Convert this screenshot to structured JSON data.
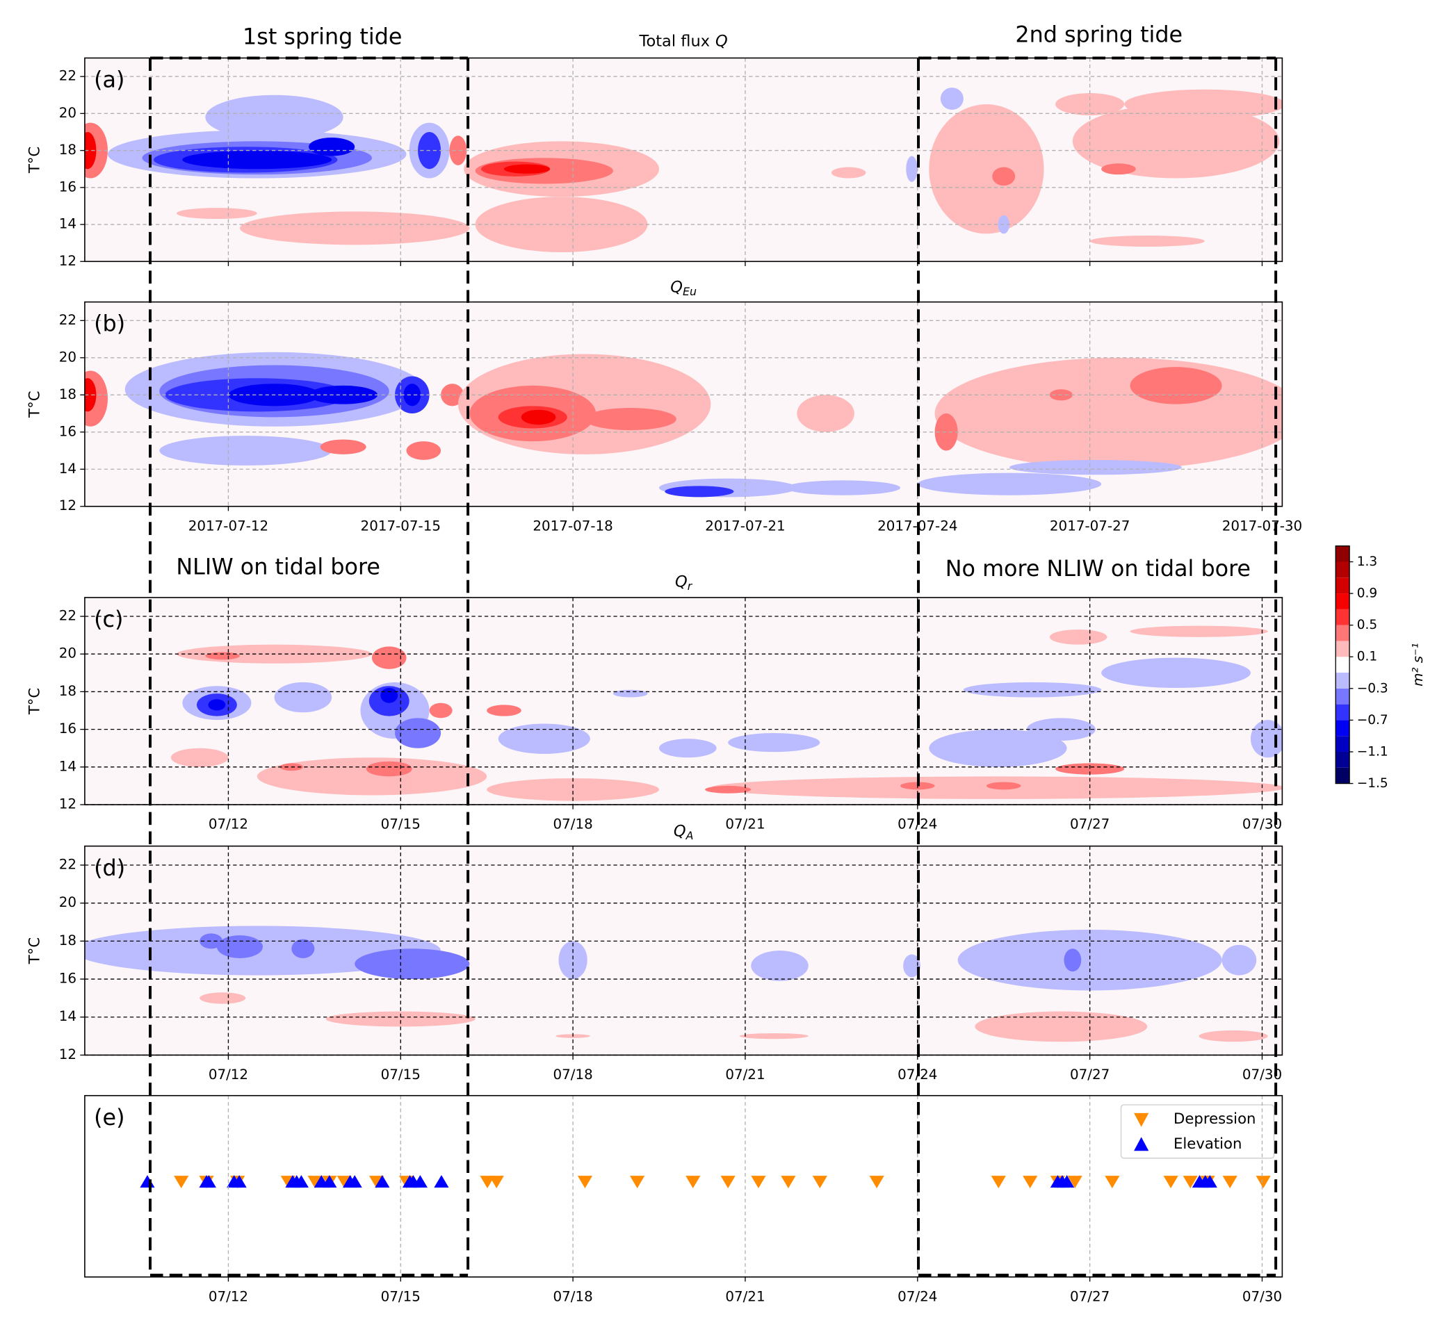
{
  "annotations": {
    "first_spring": "1st spring tide",
    "second_spring": "2nd spring tide",
    "nliw": "NLIW on tidal bore",
    "no_nliw": "No more NLIW on tidal bore"
  },
  "colorbar": {
    "label": "m² s⁻¹",
    "clim": [
      -1.5,
      1.5
    ],
    "levels": [
      -1.5,
      -1.3,
      -1.1,
      -0.9,
      -0.7,
      -0.5,
      -0.3,
      -0.1,
      0.1,
      0.3,
      0.5,
      0.7,
      0.9,
      1.1,
      1.3,
      1.5
    ],
    "ticks": [
      {
        "value": -1.5,
        "label": "−1.5"
      },
      {
        "value": -1.1,
        "label": "−1.1"
      },
      {
        "value": -0.7,
        "label": "−0.7"
      },
      {
        "value": -0.3,
        "label": "−0.3"
      },
      0.1,
      0.5,
      0.9,
      1.3
    ]
  },
  "chart_data": [
    {
      "type": "contour",
      "panel_label": "(a)",
      "title": "Total flux",
      "title_var": "Q",
      "ylabel": "T°C",
      "xlim": [
        9.5,
        30.35
      ],
      "ylim": [
        12,
        23
      ],
      "xticks": [
        12,
        15,
        18,
        21,
        24,
        27,
        30
      ],
      "yticks": [
        12,
        14,
        16,
        18,
        20,
        22
      ],
      "grid_color": "#b0b0b0",
      "blobs": [
        [
          9.6,
          18,
          0.3,
          1.5,
          0.4
        ],
        [
          9.55,
          18,
          0.15,
          1,
          0.8
        ],
        [
          12.5,
          17.8,
          2.6,
          1.3,
          -0.2
        ],
        [
          12.8,
          19.8,
          1.2,
          1.2,
          -0.2
        ],
        [
          12.5,
          17.6,
          2.0,
          0.9,
          -0.4
        ],
        [
          12.3,
          17.5,
          1.6,
          0.7,
          -0.6
        ],
        [
          12.5,
          17.5,
          1.3,
          0.5,
          -0.8
        ],
        [
          13.8,
          18.2,
          0.4,
          0.5,
          -0.8
        ],
        [
          15.5,
          18,
          0.35,
          1.5,
          -0.2
        ],
        [
          15.5,
          18,
          0.2,
          1,
          -0.6
        ],
        [
          16,
          18,
          0.15,
          0.8,
          0.4
        ],
        [
          14.2,
          13.8,
          2.0,
          0.9,
          0.2
        ],
        [
          11.8,
          14.6,
          0.7,
          0.3,
          0.2
        ],
        [
          17.8,
          17,
          1.7,
          1.5,
          0.2
        ],
        [
          17.8,
          14,
          1.5,
          1.5,
          0.2
        ],
        [
          17.5,
          16.9,
          1.2,
          0.7,
          0.4
        ],
        [
          17,
          17,
          0.6,
          0.4,
          0.6
        ],
        [
          17.2,
          17,
          0.4,
          0.25,
          0.8
        ],
        [
          25.2,
          17,
          1,
          3.5,
          0.2
        ],
        [
          28.5,
          18.5,
          1.8,
          2,
          0.2
        ],
        [
          29,
          20.5,
          1.4,
          0.8,
          0.2
        ],
        [
          27,
          20.5,
          0.6,
          0.6,
          0.2
        ],
        [
          28,
          13.1,
          1,
          0.3,
          0.2
        ],
        [
          25.5,
          16.6,
          0.2,
          0.5,
          0.4
        ],
        [
          27.5,
          17,
          0.3,
          0.3,
          0.4
        ],
        [
          24.6,
          20.8,
          0.2,
          0.6,
          -0.2
        ],
        [
          25.5,
          14,
          0.1,
          0.5,
          -0.2
        ],
        [
          23.9,
          17,
          0.1,
          0.7,
          -0.2
        ],
        [
          22.8,
          16.8,
          0.3,
          0.3,
          0.2
        ]
      ]
    },
    {
      "type": "contour",
      "panel_label": "(b)",
      "title_var": "Q",
      "title_sub": "Eu",
      "ylabel": "T°C",
      "xlim": [
        9.5,
        30.35
      ],
      "ylim": [
        12,
        23
      ],
      "xticks": [
        {
          "value": 12,
          "label": "2017-07-12"
        },
        {
          "value": 15,
          "label": "2017-07-15"
        },
        {
          "value": 18,
          "label": "2017-07-18"
        },
        {
          "value": 21,
          "label": "2017-07-21"
        },
        {
          "value": 24,
          "label": "2017-07-24"
        },
        {
          "value": 27,
          "label": "2017-07-27"
        },
        {
          "value": 30,
          "label": "2017-07-30"
        }
      ],
      "yticks": [
        12,
        14,
        16,
        18,
        20,
        22
      ],
      "grid_color": "#b0b0b0",
      "blobs": [
        [
          9.6,
          17.8,
          0.3,
          1.5,
          0.4
        ],
        [
          9.55,
          18,
          0.15,
          0.9,
          0.8
        ],
        [
          12.8,
          18.3,
          2.6,
          2,
          -0.2
        ],
        [
          12.3,
          15,
          1.5,
          0.8,
          -0.2
        ],
        [
          12.8,
          18.2,
          2.0,
          1.4,
          -0.4
        ],
        [
          12.5,
          18,
          1.6,
          0.9,
          -0.6
        ],
        [
          12.8,
          18,
          0.8,
          0.6,
          -0.8
        ],
        [
          14,
          18,
          0.6,
          0.5,
          -0.8
        ],
        [
          15.2,
          18,
          0.3,
          1,
          -0.6
        ],
        [
          15.2,
          18,
          0.15,
          0.6,
          -0.8
        ],
        [
          14,
          15.2,
          0.4,
          0.4,
          0.4
        ],
        [
          15.4,
          15,
          0.3,
          0.5,
          0.4
        ],
        [
          15.9,
          18,
          0.2,
          0.6,
          0.4
        ],
        [
          18.2,
          17.5,
          2.2,
          2.7,
          0.2
        ],
        [
          17.3,
          17,
          1.1,
          1.5,
          0.4
        ],
        [
          17.3,
          16.8,
          0.6,
          0.6,
          0.6
        ],
        [
          17.4,
          16.8,
          0.3,
          0.4,
          0.8
        ],
        [
          19,
          16.7,
          0.8,
          0.6,
          0.4
        ],
        [
          27.5,
          17,
          3.2,
          3,
          0.2
        ],
        [
          26.5,
          18,
          0.2,
          0.3,
          0.4
        ],
        [
          28.5,
          18.5,
          0.8,
          1,
          0.4
        ],
        [
          24.5,
          16,
          0.2,
          1,
          0.4
        ],
        [
          22.4,
          17,
          0.5,
          1,
          0.2
        ],
        [
          20.7,
          13,
          1.2,
          0.5,
          -0.2
        ],
        [
          20.2,
          12.8,
          0.6,
          0.3,
          -0.6
        ],
        [
          22.7,
          13,
          1,
          0.4,
          -0.2
        ],
        [
          25.6,
          13.2,
          1.6,
          0.6,
          -0.2
        ],
        [
          27.1,
          14.1,
          1.5,
          0.4,
          -0.2
        ]
      ]
    },
    {
      "type": "contour",
      "panel_label": "(c)",
      "title_var": "Q",
      "title_sub": "r",
      "ylabel": "T°C",
      "xlim": [
        9.5,
        30.35
      ],
      "ylim": [
        12,
        23
      ],
      "xticks": [
        {
          "value": 12,
          "label": "07/12"
        },
        {
          "value": 15,
          "label": "07/15"
        },
        {
          "value": 18,
          "label": "07/18"
        },
        {
          "value": 21,
          "label": "07/21"
        },
        {
          "value": 24,
          "label": "07/24"
        },
        {
          "value": 27,
          "label": "07/27"
        },
        {
          "value": 30,
          "label": "07/30"
        }
      ],
      "yticks": [
        12,
        14,
        16,
        18,
        20,
        22
      ],
      "grid_color": "#000000",
      "blobs": [
        [
          12.8,
          20,
          1.7,
          0.5,
          0.2
        ],
        [
          11.9,
          19.9,
          0.3,
          0.2,
          0.4
        ],
        [
          11.8,
          17.4,
          0.6,
          0.9,
          -0.2
        ],
        [
          11.8,
          17.3,
          0.35,
          0.6,
          -0.6
        ],
        [
          11.8,
          17.3,
          0.15,
          0.3,
          -0.8
        ],
        [
          13.3,
          17.7,
          0.5,
          0.8,
          -0.2
        ],
        [
          14.9,
          17,
          0.6,
          1.5,
          -0.2
        ],
        [
          14.8,
          17.5,
          0.35,
          0.8,
          -0.6
        ],
        [
          14.8,
          17.8,
          0.15,
          0.4,
          -0.8
        ],
        [
          15.3,
          15.8,
          0.4,
          0.8,
          -0.4
        ],
        [
          14.8,
          19.8,
          0.3,
          0.6,
          0.4
        ],
        [
          15.7,
          17,
          0.2,
          0.4,
          0.4
        ],
        [
          14.5,
          13.5,
          2.0,
          1,
          0.2
        ],
        [
          14.8,
          13.9,
          0.4,
          0.4,
          0.4
        ],
        [
          13.1,
          14,
          0.2,
          0.2,
          0.4
        ],
        [
          11.5,
          14.5,
          0.5,
          0.5,
          0.2
        ],
        [
          17.5,
          15.5,
          0.8,
          0.8,
          -0.2
        ],
        [
          20,
          15,
          0.5,
          0.5,
          -0.2
        ],
        [
          19,
          17.9,
          0.3,
          0.2,
          -0.2
        ],
        [
          21.5,
          15.3,
          0.8,
          0.5,
          -0.2
        ],
        [
          16.8,
          17,
          0.3,
          0.3,
          0.4
        ],
        [
          25.4,
          12.9,
          5,
          0.6,
          0.2
        ],
        [
          20.7,
          12.8,
          0.4,
          0.2,
          0.4
        ],
        [
          24,
          13,
          0.3,
          0.2,
          0.4
        ],
        [
          25.5,
          13,
          0.3,
          0.2,
          0.4
        ],
        [
          27,
          13.9,
          0.6,
          0.3,
          0.4
        ],
        [
          18,
          12.8,
          1.5,
          0.6,
          0.2
        ],
        [
          25.4,
          15,
          1.2,
          1,
          -0.2
        ],
        [
          26.5,
          16,
          0.6,
          0.6,
          -0.2
        ],
        [
          28.5,
          19,
          1.3,
          0.8,
          -0.2
        ],
        [
          30.1,
          15.5,
          0.3,
          1,
          -0.2
        ],
        [
          26,
          18.1,
          1.2,
          0.4,
          -0.2
        ],
        [
          26.8,
          20.9,
          0.5,
          0.4,
          0.2
        ],
        [
          28.9,
          21.2,
          1.2,
          0.3,
          0.2
        ]
      ]
    },
    {
      "type": "contour",
      "panel_label": "(d)",
      "title_var": "Q",
      "title_sub": "A",
      "ylabel": "T°C",
      "xlim": [
        9.5,
        30.35
      ],
      "ylim": [
        12,
        23
      ],
      "xticks": [
        {
          "value": 12,
          "label": "07/12"
        },
        {
          "value": 15,
          "label": "07/15"
        },
        {
          "value": 18,
          "label": "07/18"
        },
        {
          "value": 21,
          "label": "07/21"
        },
        {
          "value": 24,
          "label": "07/24"
        },
        {
          "value": 27,
          "label": "07/27"
        },
        {
          "value": 30,
          "label": "07/30"
        }
      ],
      "yticks": [
        12,
        14,
        16,
        18,
        20,
        22
      ],
      "grid_color": "#000000",
      "blobs": [
        [
          12.5,
          17.5,
          3.2,
          1.3,
          -0.2
        ],
        [
          15.2,
          16.8,
          1,
          0.8,
          -0.4
        ],
        [
          12.2,
          17.7,
          0.4,
          0.6,
          -0.4
        ],
        [
          13.3,
          17.6,
          0.2,
          0.5,
          -0.4
        ],
        [
          11.7,
          18,
          0.2,
          0.4,
          -0.4
        ],
        [
          18,
          17,
          0.25,
          1,
          -0.2
        ],
        [
          21.6,
          16.7,
          0.5,
          0.8,
          -0.2
        ],
        [
          27,
          17,
          2.3,
          1.6,
          -0.2
        ],
        [
          26.7,
          17,
          0.15,
          0.6,
          -0.4
        ],
        [
          29.6,
          17,
          0.3,
          0.8,
          -0.2
        ],
        [
          28.7,
          17,
          0.2,
          0.6,
          -0.2
        ],
        [
          23.9,
          16.7,
          0.15,
          0.6,
          -0.2
        ],
        [
          15,
          13.9,
          1.3,
          0.4,
          0.2
        ],
        [
          11.9,
          15,
          0.4,
          0.3,
          0.2
        ],
        [
          26.5,
          13.5,
          1.5,
          0.8,
          0.2
        ],
        [
          29.5,
          13,
          0.6,
          0.3,
          0.2
        ],
        [
          21.5,
          13,
          0.6,
          0.15,
          0.2
        ],
        [
          18,
          13,
          0.3,
          0.1,
          0.2
        ]
      ]
    },
    {
      "type": "scatter",
      "panel_label": "(e)",
      "xlim": [
        9.5,
        30.35
      ],
      "xticks": [
        {
          "value": 12,
          "label": "07/12"
        },
        {
          "value": 15,
          "label": "07/15"
        },
        {
          "value": 18,
          "label": "07/18"
        },
        {
          "value": 21,
          "label": "07/21"
        },
        {
          "value": 24,
          "label": "07/24"
        },
        {
          "value": 27,
          "label": "07/27"
        },
        {
          "value": 30,
          "label": "07/30"
        }
      ],
      "grid_color": "#b0b0b0",
      "legend": "upper right",
      "series": [
        {
          "name": "Depression",
          "color": "#ff8c00",
          "marker": "down",
          "x": [
            11.18,
            11.62,
            12.16,
            13.04,
            13.51,
            13.76,
            14.02,
            14.58,
            15.1,
            16.51,
            16.67,
            18.21,
            19.12,
            20.09,
            20.7,
            21.23,
            21.75,
            22.3,
            23.29,
            25.41,
            25.96,
            26.44,
            26.74,
            27.39,
            28.41,
            28.75,
            29.05,
            29.44,
            30.02
          ]
        },
        {
          "name": "Elevation",
          "color": "#0000ff",
          "marker": "up",
          "x": [
            10.59,
            11.62,
            11.66,
            12.1,
            12.19,
            13.12,
            13.19,
            13.27,
            13.62,
            13.76,
            14.12,
            14.2,
            14.68,
            15.16,
            15.22,
            15.34,
            15.71,
            26.44,
            26.52,
            26.6,
            28.91,
            29.01,
            29.09
          ]
        }
      ]
    }
  ]
}
